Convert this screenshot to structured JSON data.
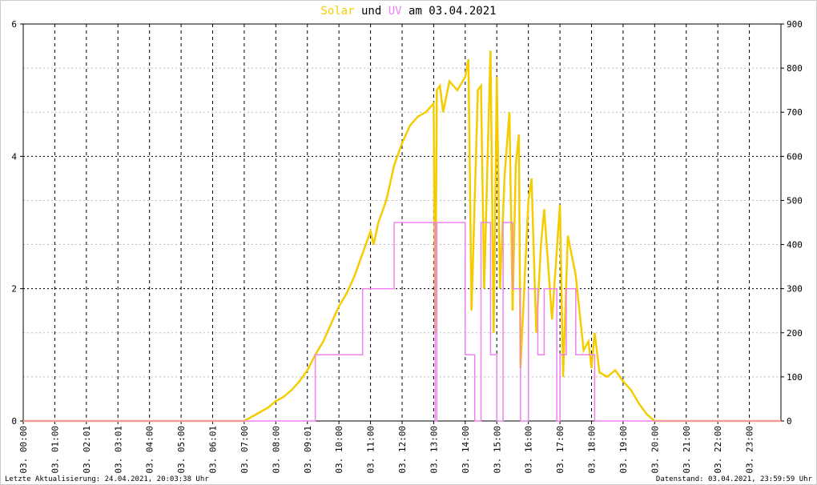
{
  "chart_data": {
    "type": "line",
    "title_joiner": "und",
    "title_suffix": "am 03.04.2021",
    "xlim": [
      0,
      24
    ],
    "xticks": [
      {
        "value": 0,
        "label": "03. 00:00"
      },
      {
        "value": 1,
        "label": "03. 01:00"
      },
      {
        "value": 2,
        "label": "03. 02:01"
      },
      {
        "value": 3,
        "label": "03. 03:01"
      },
      {
        "value": 4,
        "label": "03. 04:00"
      },
      {
        "value": 5,
        "label": "03. 05:00"
      },
      {
        "value": 6,
        "label": "03. 06:01"
      },
      {
        "value": 7,
        "label": "03. 07:00"
      },
      {
        "value": 8,
        "label": "03. 08:00"
      },
      {
        "value": 9,
        "label": "03. 09:01"
      },
      {
        "value": 10,
        "label": "03. 10:00"
      },
      {
        "value": 11,
        "label": "03. 11:00"
      },
      {
        "value": 12,
        "label": "03. 12:00"
      },
      {
        "value": 13,
        "label": "03. 13:00"
      },
      {
        "value": 14,
        "label": "03. 14:00"
      },
      {
        "value": 15,
        "label": "03. 15:00"
      },
      {
        "value": 16,
        "label": "03. 16:00"
      },
      {
        "value": 17,
        "label": "03. 17:00"
      },
      {
        "value": 18,
        "label": "03. 18:00"
      },
      {
        "value": 19,
        "label": "03. 19:00"
      },
      {
        "value": 20,
        "label": "03. 20:00"
      },
      {
        "value": 21,
        "label": "03. 21:00"
      },
      {
        "value": 22,
        "label": "03. 22:00"
      },
      {
        "value": 23,
        "label": "03. 23:00"
      }
    ],
    "ylim": [
      0,
      6
    ],
    "yticks": [
      0,
      2,
      4,
      6
    ],
    "y2lim": [
      0,
      900
    ],
    "y2ticks": [
      0,
      100,
      200,
      300,
      400,
      500,
      600,
      700,
      800,
      900
    ],
    "grid": true,
    "series": [
      {
        "name": "Solar",
        "color": "#f5cc00",
        "axis": "y2",
        "x": [
          0,
          7,
          7.25,
          7.5,
          7.75,
          8,
          8.25,
          8.5,
          8.75,
          9,
          9.25,
          9.5,
          9.75,
          10,
          10.25,
          10.5,
          10.75,
          11,
          11.1,
          11.25,
          11.5,
          11.75,
          12,
          12.25,
          12.5,
          12.75,
          13,
          13.05,
          13.1,
          13.2,
          13.3,
          13.5,
          13.75,
          14,
          14.1,
          14.2,
          14.4,
          14.5,
          14.6,
          14.75,
          14.8,
          14.9,
          15.0,
          15.1,
          15.25,
          15.4,
          15.5,
          15.6,
          15.7,
          15.75,
          16,
          16.1,
          16.25,
          16.4,
          16.5,
          16.75,
          17,
          17.1,
          17.25,
          17.5,
          17.75,
          17.9,
          18,
          18.1,
          18.25,
          18.5,
          18.75,
          19,
          19.25,
          19.5,
          19.75,
          20,
          24
        ],
        "values": [
          0,
          0,
          10,
          20,
          30,
          45,
          55,
          70,
          90,
          115,
          150,
          180,
          220,
          260,
          290,
          330,
          380,
          430,
          400,
          450,
          500,
          580,
          630,
          670,
          690,
          700,
          720,
          200,
          750,
          760,
          700,
          770,
          750,
          780,
          820,
          250,
          750,
          760,
          300,
          710,
          840,
          200,
          780,
          300,
          560,
          700,
          250,
          580,
          650,
          120,
          500,
          550,
          200,
          400,
          480,
          230,
          490,
          100,
          420,
          330,
          160,
          180,
          120,
          200,
          110,
          100,
          115,
          90,
          70,
          40,
          15,
          0,
          0
        ]
      },
      {
        "name": "UV",
        "color": "#ee82ee",
        "axis": "y",
        "x": [
          0,
          9.25,
          9.25,
          10.75,
          10.75,
          11.75,
          11.75,
          13.05,
          13.05,
          13.1,
          13.1,
          14.0,
          14.0,
          14.3,
          14.3,
          14.5,
          14.5,
          14.8,
          14.8,
          15.0,
          15.0,
          15.2,
          15.2,
          15.5,
          15.5,
          15.75,
          15.75,
          16.0,
          16.0,
          16.3,
          16.3,
          16.5,
          16.5,
          16.9,
          16.9,
          17.0,
          17.0,
          17.2,
          17.2,
          17.5,
          17.5,
          18.1,
          18.1,
          24
        ],
        "values": [
          0,
          0,
          1,
          1,
          2,
          2,
          3,
          3,
          0,
          0,
          3,
          3,
          1,
          1,
          0,
          0,
          3,
          3,
          1,
          1,
          0,
          0,
          3,
          3,
          2,
          2,
          0,
          0,
          2,
          2,
          1,
          1,
          2,
          2,
          0,
          0,
          1,
          1,
          2,
          2,
          1,
          1,
          0,
          0
        ]
      }
    ]
  },
  "footer": {
    "left": "Letzte Aktualisierung: 24.04.2021, 20:03:38 Uhr",
    "right": "Datenstand: 03.04.2021, 23:59:59 Uhr"
  }
}
